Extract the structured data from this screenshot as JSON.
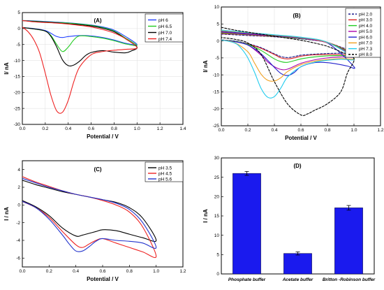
{
  "chart_data": [
    {
      "id": "A",
      "type": "line",
      "panel_label": "(A)",
      "xlabel": "Potential / V",
      "ylabel": "I/ nA",
      "xlim": [
        0,
        1.4
      ],
      "ylim": [
        -30,
        5
      ],
      "xticks": [
        0.0,
        0.2,
        0.4,
        0.6,
        0.8,
        1.0,
        1.2,
        1.4
      ],
      "yticks": [
        -30,
        -25,
        -20,
        -15,
        -10,
        -5,
        0,
        5
      ],
      "grid": true,
      "legend_position": "top-right",
      "series": [
        {
          "name": "pH 6",
          "color": "#1f3fff",
          "x": [
            0.0,
            0.1,
            0.2,
            0.3,
            0.4,
            0.5,
            0.6,
            0.7,
            0.8,
            0.9,
            1.0,
            0.9,
            0.8,
            0.7,
            0.6,
            0.5,
            0.4,
            0.35,
            0.3,
            0.25,
            0.2,
            0.1,
            0.0
          ],
          "y": [
            2.5,
            2.4,
            2.2,
            2.0,
            1.8,
            1.5,
            1.1,
            0.5,
            -0.5,
            -2.5,
            -5.0,
            -4.6,
            -3.6,
            -2.8,
            -2.3,
            -2.2,
            -2.5,
            -2.8,
            -2.5,
            -1.5,
            -0.6,
            0.0,
            0.3
          ]
        },
        {
          "name": "pH 6.5",
          "color": "#22cc22",
          "x": [
            0.0,
            0.1,
            0.2,
            0.3,
            0.4,
            0.5,
            0.6,
            0.7,
            0.8,
            0.9,
            1.0,
            0.9,
            0.8,
            0.7,
            0.6,
            0.5,
            0.45,
            0.4,
            0.35,
            0.3,
            0.25,
            0.2,
            0.1,
            0.0
          ],
          "y": [
            2.5,
            2.3,
            2.1,
            1.9,
            1.7,
            1.4,
            1.0,
            0.3,
            -0.8,
            -3.0,
            -5.3,
            -4.8,
            -3.8,
            -3.0,
            -2.5,
            -2.3,
            -3.5,
            -5.8,
            -7.2,
            -5.0,
            -2.2,
            -0.8,
            -0.1,
            0.3
          ]
        },
        {
          "name": "pH 7.0",
          "color": "#000000",
          "x": [
            0.0,
            0.1,
            0.2,
            0.3,
            0.4,
            0.5,
            0.6,
            0.7,
            0.8,
            0.9,
            1.0,
            0.95,
            0.9,
            0.8,
            0.7,
            0.6,
            0.55,
            0.5,
            0.45,
            0.4,
            0.35,
            0.3,
            0.25,
            0.2,
            0.1,
            0.0
          ],
          "y": [
            2.5,
            2.2,
            2.0,
            1.8,
            1.5,
            1.2,
            0.8,
            0.1,
            -1.0,
            -3.2,
            -5.8,
            -7.0,
            -7.6,
            -7.4,
            -6.9,
            -7.5,
            -8.5,
            -10.2,
            -11.4,
            -11.6,
            -9.8,
            -5.8,
            -2.5,
            -0.8,
            -0.1,
            0.3
          ]
        },
        {
          "name": "pH 7.4",
          "color": "#ee2222",
          "x": [
            0.0,
            0.1,
            0.2,
            0.3,
            0.4,
            0.5,
            0.6,
            0.7,
            0.8,
            0.9,
            1.0,
            0.9,
            0.8,
            0.7,
            0.6,
            0.5,
            0.45,
            0.4,
            0.35,
            0.3,
            0.25,
            0.2,
            0.15,
            0.1,
            0.05,
            0.0
          ],
          "y": [
            2.5,
            2.1,
            1.9,
            1.7,
            1.4,
            1.0,
            0.5,
            -0.3,
            -1.4,
            -3.2,
            -6.0,
            -6.5,
            -6.8,
            -7.2,
            -8.2,
            -12.0,
            -16.5,
            -22.5,
            -26.2,
            -25.8,
            -21.0,
            -14.0,
            -7.5,
            -3.5,
            -1.0,
            0.5
          ]
        }
      ]
    },
    {
      "id": "B",
      "type": "line",
      "panel_label": "(B)",
      "xlabel": "Potential / V",
      "ylabel": "I/ nA",
      "xlim": [
        0,
        1.2
      ],
      "ylim": [
        -25,
        10
      ],
      "xticks": [
        0.0,
        0.2,
        0.4,
        0.6,
        0.8,
        1.0,
        1.2
      ],
      "yticks": [
        -25,
        -20,
        -15,
        -10,
        -5,
        0,
        5,
        10
      ],
      "grid": true,
      "legend_position": "top-right",
      "series": [
        {
          "name": "pH 2.0",
          "color": "#1a1a8c",
          "dashed": true,
          "x": [
            0.0,
            0.2,
            0.4,
            0.6,
            0.8,
            1.0,
            0.9,
            0.8,
            0.7,
            0.6,
            0.55,
            0.5,
            0.45,
            0.4,
            0.3,
            0.2,
            0.1,
            0.0
          ],
          "y": [
            2.0,
            1.6,
            1.2,
            0.6,
            -0.5,
            -3.5,
            -3.6,
            -3.7,
            -3.9,
            -4.2,
            -4.6,
            -4.9,
            -4.6,
            -3.8,
            -2.0,
            -0.8,
            0.0,
            0.3
          ]
        },
        {
          "name": "pH 3.0",
          "color": "#dd2222",
          "x": [
            0.0,
            0.2,
            0.4,
            0.6,
            0.8,
            1.0,
            0.9,
            0.8,
            0.7,
            0.6,
            0.55,
            0.5,
            0.45,
            0.4,
            0.3,
            0.2,
            0.1,
            0.0
          ],
          "y": [
            2.2,
            1.8,
            1.3,
            0.7,
            -0.4,
            -4.0,
            -4.0,
            -4.0,
            -4.1,
            -4.5,
            -5.0,
            -5.3,
            -5.0,
            -4.0,
            -2.2,
            -0.9,
            -0.1,
            0.3
          ]
        },
        {
          "name": "pH 4.0",
          "color": "#22cc22",
          "x": [
            0.0,
            0.2,
            0.4,
            0.6,
            0.8,
            1.0,
            0.9,
            0.8,
            0.7,
            0.6,
            0.5,
            0.45,
            0.4,
            0.3,
            0.2,
            0.1,
            0.0
          ],
          "y": [
            2.4,
            1.9,
            1.4,
            0.7,
            -0.5,
            -4.2,
            -4.3,
            -4.4,
            -4.7,
            -5.3,
            -6.3,
            -6.1,
            -5.3,
            -2.8,
            -1.0,
            -0.1,
            0.3
          ]
        },
        {
          "name": "pH 5.0",
          "color": "#aa00aa",
          "x": [
            0.0,
            0.2,
            0.4,
            0.6,
            0.8,
            1.0,
            0.9,
            0.8,
            0.7,
            0.6,
            0.5,
            0.45,
            0.4,
            0.35,
            0.3,
            0.2,
            0.1,
            0.0
          ],
          "y": [
            2.6,
            2.0,
            1.5,
            0.8,
            -0.6,
            -4.5,
            -4.7,
            -5.0,
            -5.6,
            -6.6,
            -8.3,
            -8.4,
            -7.6,
            -6.2,
            -4.2,
            -1.2,
            -0.2,
            0.3
          ]
        },
        {
          "name": "pH 6.0",
          "color": "#2222cc",
          "x": [
            0.0,
            0.2,
            0.4,
            0.6,
            0.8,
            1.0,
            0.95,
            0.9,
            0.8,
            0.7,
            0.6,
            0.55,
            0.5,
            0.45,
            0.4,
            0.3,
            0.2,
            0.1,
            0.0
          ],
          "y": [
            2.8,
            2.2,
            1.6,
            0.9,
            -0.6,
            -7.6,
            -7.4,
            -7.0,
            -6.4,
            -6.4,
            -7.6,
            -9.3,
            -10.2,
            -9.6,
            -7.8,
            -3.8,
            -1.2,
            -0.2,
            0.3
          ]
        },
        {
          "name": "pH 7.0",
          "color": "#f0a020",
          "x": [
            0.0,
            0.2,
            0.4,
            0.6,
            0.8,
            1.0,
            0.9,
            0.8,
            0.7,
            0.6,
            0.5,
            0.45,
            0.4,
            0.35,
            0.3,
            0.25,
            0.2,
            0.1,
            0.0
          ],
          "y": [
            3.0,
            2.4,
            1.7,
            1.0,
            -0.5,
            -5.0,
            -5.2,
            -5.5,
            -6.0,
            -7.0,
            -9.0,
            -10.8,
            -11.8,
            -11.6,
            -9.8,
            -6.5,
            -3.2,
            -0.5,
            0.3
          ]
        },
        {
          "name": "pH 7.3",
          "color": "#22ccee",
          "x": [
            0.0,
            0.2,
            0.4,
            0.6,
            0.8,
            1.0,
            0.9,
            0.8,
            0.7,
            0.6,
            0.5,
            0.45,
            0.4,
            0.35,
            0.3,
            0.25,
            0.2,
            0.15,
            0.1,
            0.0
          ],
          "y": [
            3.2,
            2.5,
            1.8,
            1.1,
            -0.4,
            -5.2,
            -5.4,
            -5.7,
            -6.3,
            -7.6,
            -10.6,
            -13.8,
            -16.4,
            -16.6,
            -14.0,
            -9.2,
            -5.0,
            -2.2,
            -0.6,
            0.3
          ]
        },
        {
          "name": "pH 8.0",
          "color": "#000000",
          "dashed": true,
          "x": [
            0.0,
            0.1,
            0.2,
            0.3,
            0.4,
            0.5,
            0.6,
            0.7,
            0.8,
            0.9,
            1.0,
            0.95,
            0.9,
            0.8,
            0.7,
            0.65,
            0.6,
            0.5,
            0.4,
            0.3,
            0.2,
            0.1,
            0.0
          ],
          "y": [
            4.0,
            3.2,
            2.6,
            2.0,
            1.4,
            0.8,
            0.2,
            -0.6,
            -1.6,
            -3.2,
            -5.2,
            -9.5,
            -15.0,
            -18.5,
            -20.5,
            -21.5,
            -21.8,
            -18.6,
            -12.0,
            -4.0,
            -0.6,
            0.5,
            1.0
          ]
        }
      ]
    },
    {
      "id": "C",
      "type": "line",
      "panel_label": "(C)",
      "xlabel": "Potential / V",
      "ylabel": "I / nA",
      "xlim": [
        0,
        1.2
      ],
      "ylim": [
        -7,
        5
      ],
      "xticks": [
        0.0,
        0.2,
        0.4,
        0.6,
        0.8,
        1.0,
        1.2
      ],
      "yticks": [
        -6,
        -4,
        -2,
        0,
        2,
        4
      ],
      "grid": false,
      "legend_position": "top-right",
      "series": [
        {
          "name": "pH 3.5",
          "color": "#000000",
          "x": [
            0.0,
            0.1,
            0.2,
            0.3,
            0.4,
            0.5,
            0.6,
            0.7,
            0.8,
            0.9,
            1.0,
            0.9,
            0.8,
            0.7,
            0.6,
            0.55,
            0.5,
            0.45,
            0.4,
            0.3,
            0.2,
            0.1,
            0.0
          ],
          "y": [
            2.8,
            2.3,
            1.9,
            1.5,
            1.2,
            0.9,
            0.6,
            0.3,
            -0.3,
            -1.5,
            -4.0,
            -3.7,
            -3.3,
            -2.9,
            -2.8,
            -3.0,
            -3.2,
            -3.4,
            -3.5,
            -2.6,
            -1.2,
            -0.2,
            0.5
          ]
        },
        {
          "name": "pH 4.5",
          "color": "#ee2222",
          "x": [
            0.0,
            0.1,
            0.2,
            0.3,
            0.4,
            0.5,
            0.6,
            0.7,
            0.8,
            0.9,
            1.0,
            0.9,
            0.8,
            0.7,
            0.6,
            0.55,
            0.5,
            0.45,
            0.4,
            0.3,
            0.2,
            0.1,
            0.0
          ],
          "y": [
            3.2,
            2.6,
            2.1,
            1.6,
            1.2,
            0.9,
            0.5,
            0.0,
            -0.8,
            -2.5,
            -5.8,
            -5.3,
            -4.8,
            -4.3,
            -3.8,
            -4.0,
            -4.4,
            -4.8,
            -4.5,
            -3.0,
            -1.4,
            -0.3,
            0.4
          ]
        },
        {
          "name": "pH 5.6",
          "color": "#2233cc",
          "x": [
            0.0,
            0.1,
            0.2,
            0.3,
            0.4,
            0.5,
            0.6,
            0.7,
            0.8,
            0.9,
            1.0,
            0.9,
            0.8,
            0.7,
            0.6,
            0.55,
            0.5,
            0.45,
            0.4,
            0.35,
            0.3,
            0.2,
            0.1,
            0.0
          ],
          "y": [
            3.0,
            2.5,
            2.0,
            1.6,
            1.2,
            0.9,
            0.6,
            0.2,
            -0.5,
            -2.0,
            -4.8,
            -4.3,
            -4.1,
            -4.0,
            -3.8,
            -4.1,
            -4.7,
            -5.2,
            -5.2,
            -4.4,
            -3.4,
            -1.6,
            -0.3,
            0.4
          ]
        }
      ]
    },
    {
      "id": "D",
      "type": "bar",
      "panel_label": "(D)",
      "xlabel": "",
      "ylabel": "I / nA",
      "ylim": [
        0,
        30
      ],
      "yticks": [
        0,
        5,
        10,
        15,
        20,
        25,
        30
      ],
      "grid": false,
      "bar_color": "#1a1aee",
      "categories": [
        "Phosphate buffer",
        "Acetate buffer",
        "Britton -Robinson buffer"
      ],
      "values": [
        26.0,
        5.3,
        17.1
      ],
      "errors": [
        0.5,
        0.4,
        0.6
      ]
    }
  ]
}
